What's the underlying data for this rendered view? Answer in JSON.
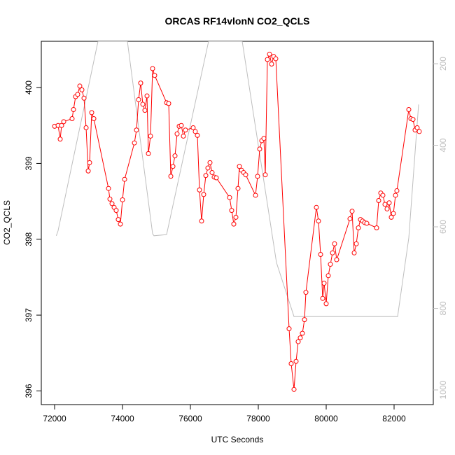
{
  "chart_data": {
    "type": "line",
    "title": "ORCAS RF14vlonN CO2_QCLS",
    "x_label": "UTC Seconds",
    "y_label": "CO2_QCLS",
    "xlim": [
      71608,
      83155
    ],
    "xticks": [
      72000,
      74000,
      76000,
      78000,
      80000,
      82000
    ],
    "ylim": [
      395.82,
      400.61
    ],
    "yticks": [
      396,
      397,
      398,
      399,
      400
    ],
    "y2lim": [
      1036,
      145
    ],
    "y2ticks": [
      200,
      400,
      600,
      800,
      1000
    ],
    "series": [
      {
        "color": "#bebebe",
        "axis": "y2",
        "markers": false,
        "x": [
          72050,
          72100,
          73278,
          74144,
          74887,
          74928,
          75299,
          76536,
          77526,
          78536,
          79052,
          79155,
          82103,
          82433,
          82722
        ],
        "values": [
          622,
          610,
          145,
          145,
          617,
          622,
          619,
          145,
          145,
          688,
          820,
          820,
          820,
          627,
          300
        ]
      },
      {
        "color": "#ff0000",
        "markers": true,
        "x": [
          72000,
          72103,
          72165,
          72206,
          72268,
          72515,
          72557,
          72619,
          72680,
          72742,
          72804,
          72866,
          72928,
          72990,
          73031,
          73093,
          73155,
          73588,
          73629,
          73691,
          73753,
          73814,
          73876,
          73938,
          74000,
          74062,
          74351,
          74412,
          74474,
          74536,
          74598,
          74660,
          74722,
          74763,
          74825,
          74887,
          74948,
          75299,
          75361,
          75423,
          75485,
          75546,
          75608,
          75670,
          75732,
          75794,
          75856,
          76082,
          76144,
          76206,
          76268,
          76330,
          76392,
          76454,
          76515,
          76577,
          76639,
          76701,
          76763,
          77155,
          77216,
          77278,
          77340,
          77402,
          77443,
          77505,
          77567,
          77629,
          77918,
          77979,
          78041,
          78103,
          78165,
          78206,
          78268,
          78330,
          78392,
          78454,
          78515,
          78907,
          78969,
          79052,
          79113,
          79175,
          79237,
          79299,
          79361,
          79402,
          79711,
          79773,
          79835,
          79897,
          79938,
          80000,
          80062,
          80124,
          80186,
          80247,
          80309,
          80701,
          80763,
          80825,
          80887,
          80948,
          81010,
          81072,
          81134,
          81196,
          81485,
          81546,
          81608,
          81670,
          81732,
          81794,
          81856,
          81918,
          81979,
          82041,
          82082,
          82433,
          82495,
          82557,
          82619,
          82680,
          82742
        ],
        "values": [
          399.49,
          399.5,
          399.32,
          399.5,
          399.55,
          399.59,
          399.71,
          399.88,
          399.91,
          400.02,
          399.97,
          399.86,
          399.47,
          398.9,
          399.01,
          399.67,
          399.59,
          398.67,
          398.53,
          398.47,
          398.42,
          398.38,
          398.26,
          398.2,
          398.52,
          398.79,
          399.27,
          399.44,
          399.84,
          400.06,
          399.78,
          399.7,
          399.89,
          399.13,
          399.36,
          400.25,
          400.16,
          399.8,
          399.79,
          398.83,
          398.96,
          399.1,
          399.39,
          399.49,
          399.5,
          399.36,
          399.44,
          399.47,
          399.42,
          399.37,
          398.65,
          398.24,
          398.59,
          398.84,
          398.94,
          399.01,
          398.88,
          398.82,
          398.81,
          398.55,
          398.38,
          398.2,
          398.29,
          398.67,
          398.96,
          398.91,
          398.88,
          398.85,
          398.58,
          398.83,
          399.19,
          399.3,
          399.33,
          398.85,
          400.37,
          400.44,
          400.31,
          400.41,
          400.38,
          396.82,
          396.36,
          396.02,
          396.39,
          396.65,
          396.7,
          396.76,
          396.94,
          397.3,
          398.42,
          398.24,
          397.8,
          397.22,
          397.42,
          397.15,
          397.52,
          397.67,
          397.82,
          397.94,
          397.73,
          398.27,
          398.37,
          397.82,
          397.94,
          398.15,
          398.26,
          398.24,
          398.22,
          398.21,
          398.15,
          398.51,
          398.61,
          398.58,
          398.46,
          398.4,
          398.48,
          398.29,
          398.34,
          398.58,
          398.64,
          399.71,
          399.59,
          399.58,
          399.44,
          399.47,
          399.42
        ]
      }
    ]
  }
}
